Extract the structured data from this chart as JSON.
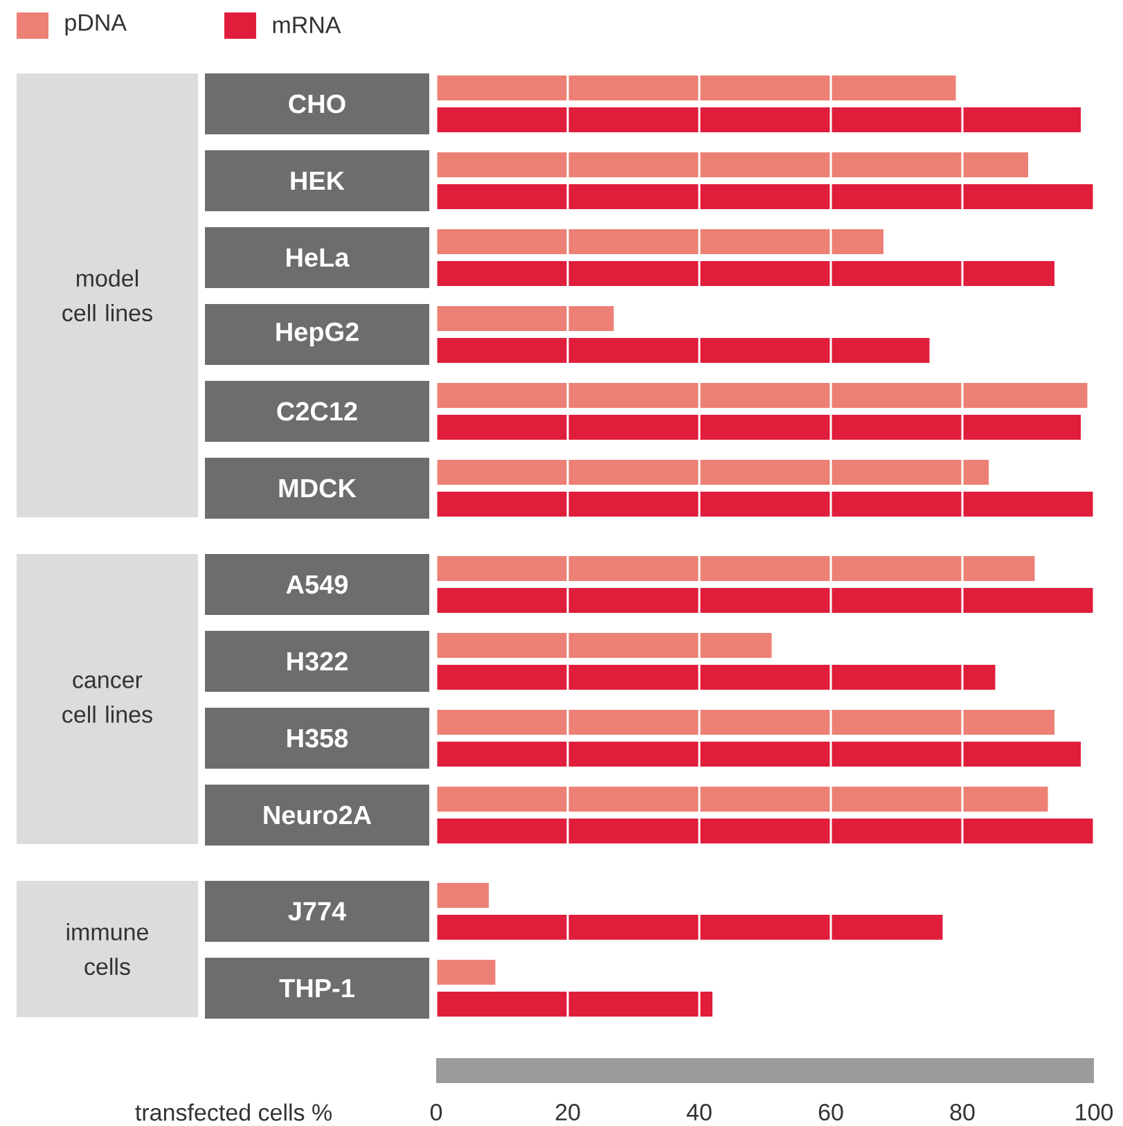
{
  "chart_data": {
    "type": "bar",
    "orientation": "horizontal",
    "categories": [
      "CHO",
      "HEK",
      "HeLa",
      "HepG2",
      "C2C12",
      "MDCK",
      "A549",
      "H322",
      "H358",
      "Neuro2A",
      "J774",
      "THP-1"
    ],
    "series": [
      {
        "name": "pDNA",
        "color": "#ec8075",
        "values": [
          79,
          90,
          68,
          27,
          99,
          84,
          91,
          51,
          94,
          93,
          8,
          9
        ]
      },
      {
        "name": "mRNA",
        "color": "#e01e3c",
        "values": [
          98,
          100,
          94,
          75,
          98,
          100,
          100,
          85,
          98,
          100,
          77,
          42
        ]
      }
    ],
    "xlabel": "transfected cells %",
    "xlim": [
      0,
      100
    ],
    "xticks": [
      0,
      20,
      40,
      60,
      80,
      100
    ],
    "grid": "x",
    "legend": "top left",
    "annotations": [
      "model cell lines",
      "cancer cell lines",
      "immune cells"
    ]
  }
}
